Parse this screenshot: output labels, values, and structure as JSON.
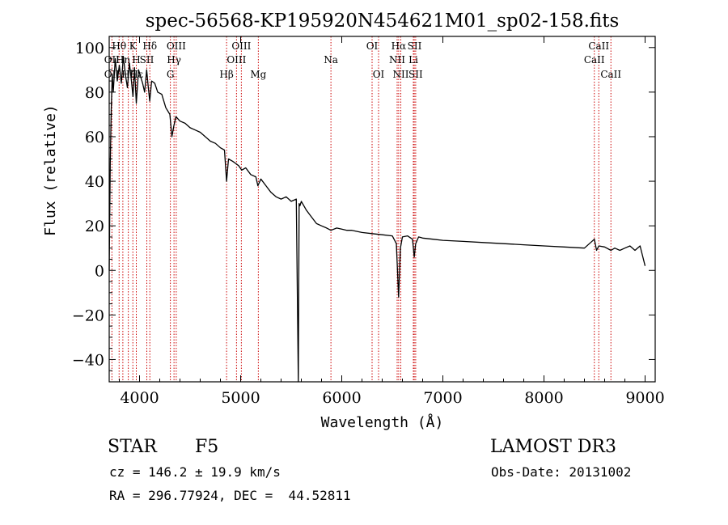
{
  "chart_data": {
    "type": "line",
    "title": "spec-56568-KP195920N454621M01_sp02-158.fits",
    "xlabel": "Wavelength (Å)",
    "ylabel": "Flux (relative)",
    "xlim": [
      3700,
      9100
    ],
    "ylim": [
      -50,
      105
    ],
    "xticks": [
      4000,
      5000,
      6000,
      7000,
      8000,
      9000
    ],
    "yticks": [
      -40,
      -20,
      0,
      20,
      40,
      60,
      80,
      100
    ],
    "series": [
      {
        "name": "spectrum",
        "x": [
          3700,
          3710,
          3720,
          3730,
          3740,
          3760,
          3780,
          3800,
          3820,
          3840,
          3860,
          3880,
          3900,
          3920,
          3935,
          3950,
          3968,
          3990,
          4010,
          4030,
          4050,
          4070,
          4085,
          4101,
          4120,
          4150,
          4180,
          4220,
          4260,
          4300,
          4320,
          4340,
          4360,
          4380,
          4400,
          4450,
          4500,
          4550,
          4600,
          4650,
          4700,
          4750,
          4800,
          4840,
          4861,
          4880,
          4920,
          4950,
          4980,
          5010,
          5050,
          5100,
          5150,
          5170,
          5200,
          5250,
          5300,
          5350,
          5400,
          5450,
          5500,
          5550,
          5570,
          5578,
          5586,
          5600,
          5650,
          5700,
          5750,
          5800,
          5850,
          5893,
          5950,
          6000,
          6050,
          6100,
          6200,
          6300,
          6400,
          6500,
          6540,
          6562,
          6580,
          6600,
          6650,
          6700,
          6717,
          6731,
          6760,
          6800,
          6900,
          7000,
          7200,
          7400,
          7600,
          7800,
          8000,
          8200,
          8400,
          8498,
          8520,
          8542,
          8600,
          8662,
          8700,
          8750,
          8800,
          8850,
          8900,
          8950,
          9000
        ],
        "values": [
          0,
          48,
          72,
          88,
          80,
          95,
          85,
          92,
          84,
          96,
          88,
          82,
          93,
          85,
          78,
          91,
          75,
          90,
          87,
          84,
          80,
          90,
          83,
          76,
          85,
          84,
          80,
          79,
          73,
          70,
          60,
          65,
          69,
          68,
          67,
          66,
          64,
          63,
          62,
          60,
          58,
          57,
          55,
          54,
          40,
          50,
          49,
          48,
          47,
          45,
          46,
          43,
          42,
          38,
          41,
          38,
          35,
          33,
          32,
          33,
          31,
          32,
          -50,
          30,
          29,
          31,
          27,
          24,
          21,
          20,
          19,
          18,
          19,
          18.5,
          18,
          18,
          17,
          16.5,
          16,
          15.5,
          12,
          -12,
          10,
          15,
          15.5,
          14,
          6,
          12,
          15,
          14.5,
          14,
          13.5,
          13,
          12.5,
          12,
          11.5,
          11,
          10.5,
          10,
          14,
          9,
          11,
          10.5,
          9,
          10,
          9,
          10,
          11,
          9,
          11,
          2
        ]
      }
    ],
    "line_labels": [
      {
        "name": "Hθ",
        "x": 3798,
        "row": 1
      },
      {
        "name": "OII",
        "x": 3727,
        "row": 2
      },
      {
        "name": "Hη",
        "x": 3835,
        "row": 2
      },
      {
        "name": "OII",
        "x": 3727,
        "row": 3
      },
      {
        "name": "Hζ",
        "x": 3889,
        "row": 3
      },
      {
        "name": "K",
        "x": 3934,
        "row": 1
      },
      {
        "name": "H",
        "x": 3968,
        "row": 2
      },
      {
        "name": "Hε",
        "x": 3970,
        "row": 3
      },
      {
        "name": "Hδ",
        "x": 4102,
        "row": 1
      },
      {
        "name": "SII",
        "x": 4072,
        "row": 2
      },
      {
        "name": "OIII",
        "x": 4363,
        "row": 1
      },
      {
        "name": "Hγ",
        "x": 4341,
        "row": 2
      },
      {
        "name": "G",
        "x": 4305,
        "row": 3
      },
      {
        "name": "Hβ",
        "x": 4861,
        "row": 3
      },
      {
        "name": "OIII",
        "x": 5007,
        "row": 1
      },
      {
        "name": "OIII",
        "x": 4959,
        "row": 2
      },
      {
        "name": "Mg",
        "x": 5175,
        "row": 3
      },
      {
        "name": "Na",
        "x": 5893,
        "row": 2
      },
      {
        "name": "OI",
        "x": 6300,
        "row": 1
      },
      {
        "name": "OI",
        "x": 6364,
        "row": 3
      },
      {
        "name": "Hα",
        "x": 6563,
        "row": 1
      },
      {
        "name": "SII",
        "x": 6720,
        "row": 1
      },
      {
        "name": "NII",
        "x": 6548,
        "row": 2
      },
      {
        "name": "Li",
        "x": 6708,
        "row": 2
      },
      {
        "name": "NII",
        "x": 6584,
        "row": 3
      },
      {
        "name": "SII",
        "x": 6731,
        "row": 3
      },
      {
        "name": "CaII",
        "x": 8542,
        "row": 1
      },
      {
        "name": "CaII",
        "x": 8498,
        "row": 2
      },
      {
        "name": "CaII",
        "x": 8662,
        "row": 3
      }
    ],
    "line_markers": [
      3727,
      3798,
      3835,
      3889,
      3934,
      3968,
      4072,
      4102,
      4305,
      4341,
      4363,
      4861,
      4959,
      5007,
      5175,
      5893,
      6300,
      6364,
      6548,
      6563,
      6584,
      6708,
      6717,
      6731,
      8498,
      8542,
      8662
    ],
    "colors": {
      "spectrum": "#000000",
      "markers": "#cc0000",
      "axes": "#000000"
    }
  },
  "info": {
    "object_class": "STAR",
    "subclass": "F5",
    "survey": "LAMOST DR3",
    "redshift": "cz = 146.2 ± 19.9 km/s",
    "obs_date": "Obs-Date: 20131002",
    "coords": "RA = 296.77924, DEC =  44.52811"
  }
}
